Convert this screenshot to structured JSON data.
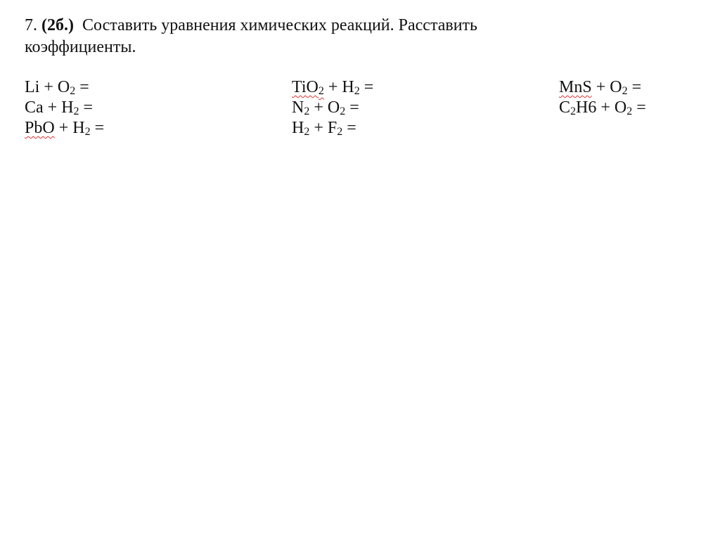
{
  "task": {
    "number": "7.",
    "points": "(2б.)",
    "text_line1": "Составить уравнения химических реакций. Расставить",
    "text_line2": "коэффициенты."
  },
  "spellcheck_color": "#e03030",
  "columns": [
    [
      [
        {
          "t": "Li + O"
        },
        {
          "s": "2"
        },
        {
          "t": " ="
        }
      ],
      [
        {
          "t": "Ca + H"
        },
        {
          "s": "2"
        },
        {
          "t": " ="
        }
      ],
      [
        {
          "t": "PbO",
          "spell": true
        },
        {
          "t": " + H"
        },
        {
          "s": "2"
        },
        {
          "t": " ="
        }
      ]
    ],
    [
      [
        {
          "t": "TiO",
          "spell": true
        },
        {
          "s": "2",
          "spell": true
        },
        {
          "t": " + H"
        },
        {
          "s": "2"
        },
        {
          "t": " ="
        }
      ],
      [
        {
          "t": "N"
        },
        {
          "s": "2"
        },
        {
          "t": " + O"
        },
        {
          "s": "2"
        },
        {
          "t": " ="
        }
      ],
      [
        {
          "t": "H"
        },
        {
          "s": "2"
        },
        {
          "t": " + F"
        },
        {
          "s": "2"
        },
        {
          "t": " ="
        }
      ]
    ],
    [
      [
        {
          "t": "MnS",
          "spell": true
        },
        {
          "t": " + O"
        },
        {
          "s": "2"
        },
        {
          "t": " ="
        }
      ],
      [
        {
          "t": "C"
        },
        {
          "s": "2"
        },
        {
          "t": "H6 + O"
        },
        {
          "s": "2"
        },
        {
          "t": " ="
        }
      ]
    ]
  ]
}
